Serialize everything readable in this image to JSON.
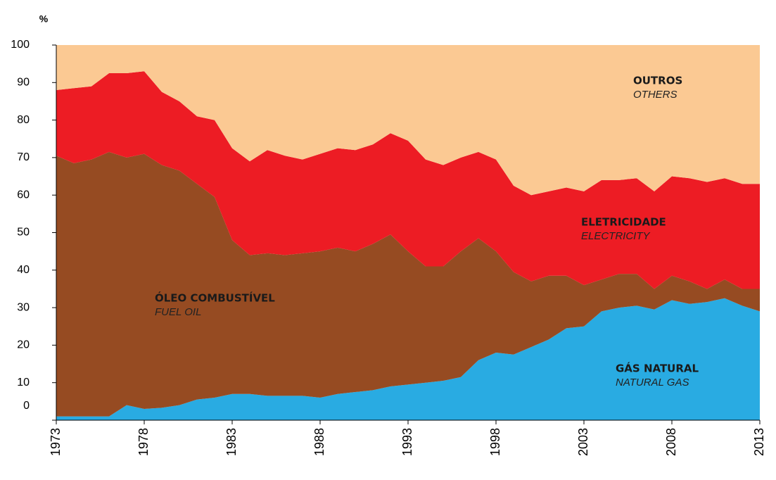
{
  "chart_data": {
    "type": "stacked_area",
    "y_label": "%",
    "x": [
      1973,
      1974,
      1975,
      1976,
      1977,
      1978,
      1979,
      1980,
      1981,
      1982,
      1983,
      1984,
      1985,
      1986,
      1987,
      1988,
      1989,
      1990,
      1991,
      1992,
      1993,
      1994,
      1995,
      1996,
      1997,
      1998,
      1999,
      2000,
      2001,
      2002,
      2003,
      2004,
      2005,
      2006,
      2007,
      2008,
      2009,
      2010,
      2011,
      2012,
      2013
    ],
    "xlim": [
      1973,
      2013
    ],
    "xticks": [
      1973,
      1978,
      1983,
      1988,
      1993,
      1998,
      2003,
      2008,
      2013
    ],
    "ylim": [
      0,
      100
    ],
    "yticks": [
      0,
      10,
      20,
      30,
      40,
      50,
      60,
      70,
      80,
      90,
      100
    ],
    "series": [
      {
        "name": "GÁS NATURAL",
        "name_en": "NATURAL GAS",
        "color": "#29abe2",
        "values": [
          1,
          1,
          1,
          1,
          4,
          3,
          3.3,
          4,
          5.5,
          6,
          7,
          7,
          6.5,
          6.5,
          6.5,
          6,
          7,
          7.5,
          8,
          9,
          9.5,
          10,
          10.5,
          11.5,
          16,
          18,
          17.5,
          19.5,
          21.5,
          24.5,
          25,
          29,
          30,
          30.5,
          29.5,
          32,
          31,
          31.5,
          32.5,
          30.5,
          29
        ]
      },
      {
        "name": "ÓLEO COMBUSTÍVEL",
        "name_en": "FUEL OIL",
        "color": "#964b22",
        "values": [
          69.5,
          67.5,
          68.5,
          70.5,
          66,
          68,
          64.7,
          62.5,
          57.5,
          53.5,
          41,
          37,
          38,
          37.5,
          38,
          39,
          39,
          37.5,
          39,
          40.5,
          35.5,
          31,
          30.5,
          33.5,
          32.5,
          27,
          22,
          17.5,
          17,
          14,
          11,
          8.5,
          9,
          8.5,
          5.5,
          6.5,
          6,
          3.5,
          5,
          4.5,
          6
        ]
      },
      {
        "name": "ELETRICIDADE",
        "name_en": "ELECTRICITY",
        "color": "#ed1c24",
        "values": [
          17.5,
          20,
          19.5,
          21,
          22.5,
          22,
          19.5,
          18.5,
          18,
          20.5,
          24.5,
          25,
          27.5,
          26.5,
          25,
          26,
          26.5,
          27,
          26.5,
          27,
          29.5,
          28.5,
          27,
          25,
          23,
          24.5,
          23,
          23,
          22.5,
          23.5,
          25,
          26.5,
          25,
          25.5,
          26,
          26.5,
          27.5,
          28.5,
          27,
          28,
          28
        ]
      },
      {
        "name": "OUTROS",
        "name_en": "OTHERS",
        "color": "#fbc993",
        "values": [
          12,
          11.5,
          11,
          7.5,
          7.5,
          7,
          12.5,
          15,
          19,
          20,
          27.5,
          31,
          28,
          29.5,
          30.5,
          29,
          27.5,
          28,
          26.5,
          23.5,
          25.5,
          30.5,
          32,
          30,
          28.5,
          30.5,
          37.5,
          40,
          39,
          38,
          39,
          36,
          36,
          35.5,
          39,
          35,
          35.5,
          36.5,
          35.5,
          37,
          37
        ]
      }
    ]
  }
}
